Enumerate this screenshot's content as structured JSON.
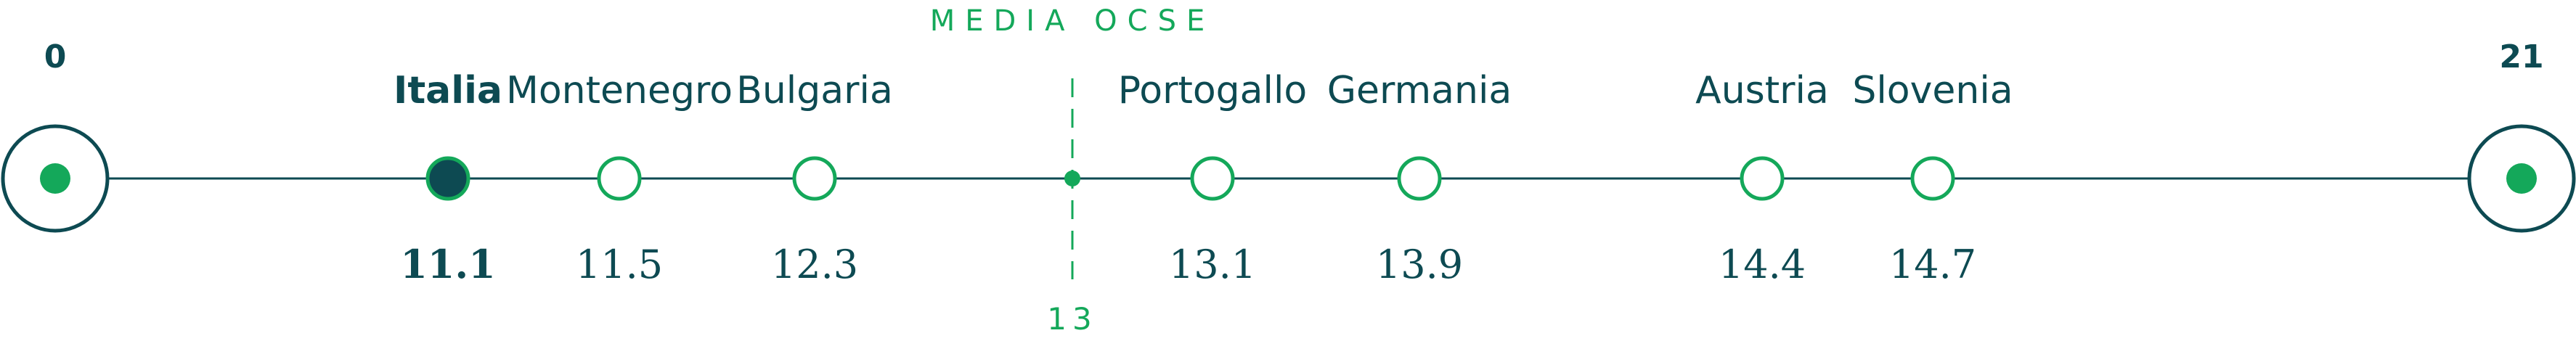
{
  "colors": {
    "axis": "#0d4a52",
    "accent": "#14a85a",
    "highlight": "#0d4a52"
  },
  "chart_data": {
    "type": "scatter",
    "xlim": [
      0,
      21
    ],
    "axis_min_label": "0",
    "axis_max_label": "21",
    "reference": {
      "label": "MEDIA OCSE",
      "value": 13,
      "value_label": "13"
    },
    "highlight": "Italia",
    "points": [
      {
        "label": "Italia",
        "value": 11.1,
        "value_label": "11.1"
      },
      {
        "label": "Montenegro",
        "value": 11.5,
        "value_label": "11.5"
      },
      {
        "label": "Bulgaria",
        "value": 12.3,
        "value_label": "12.3"
      },
      {
        "label": "Portogallo",
        "value": 13.1,
        "value_label": "13.1"
      },
      {
        "label": "Germania",
        "value": 13.9,
        "value_label": "13.9"
      },
      {
        "label": "Austria",
        "value": 14.4,
        "value_label": "14.4"
      },
      {
        "label": "Slovenia",
        "value": 14.7,
        "value_label": "14.7"
      }
    ]
  }
}
